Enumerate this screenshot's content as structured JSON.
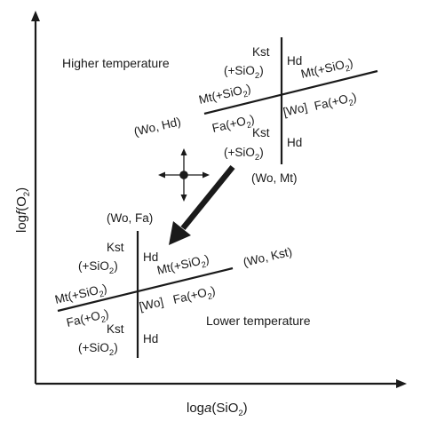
{
  "diagram": {
    "axes": {
      "y_label": {
        "prefix": "log",
        "italic": "f",
        "open": "(O",
        "sub": "2",
        "close": ")"
      },
      "x_label": {
        "prefix": "log",
        "italic": "a",
        "open": "(SiO",
        "sub": "2",
        "close": ")"
      }
    },
    "upper": {
      "region_label": "Higher temperature",
      "kst_top": "Kst",
      "sio2_top": {
        "open": "(+SiO",
        "sub": "2",
        "close": ")"
      },
      "hd_top": "Hd",
      "mt_left": {
        "open": "Mt(+SiO",
        "sub": "2",
        "close": ")"
      },
      "mt_right": {
        "open": "Mt(+SiO",
        "sub": "2",
        "close": ")"
      },
      "wo_hd": "(Wo, Hd)",
      "fa_left": {
        "open": "Fa(+O",
        "sub": "2",
        "close": ")"
      },
      "wo_bracket": "[Wo]",
      "fa_right": {
        "open": "Fa(+O",
        "sub": "2",
        "close": ")"
      },
      "kst_bottom": "Kst",
      "sio2_bottom": {
        "open": "(+SiO",
        "sub": "2",
        "close": ")"
      },
      "hd_bottom": "Hd",
      "wo_mt": "(Wo, Mt)"
    },
    "lower": {
      "wo_fa": "(Wo, Fa)",
      "kst_top": "Kst",
      "sio2_top": {
        "open": "(+SiO",
        "sub": "2",
        "close": ")"
      },
      "hd_top": "Hd",
      "mt_right": {
        "open": "Mt(+SiO",
        "sub": "2",
        "close": ")"
      },
      "wo_kst": "(Wo, Kst)",
      "mt_left": {
        "open": "Mt(+SiO",
        "sub": "2",
        "close": ")"
      },
      "fa_left": {
        "open": "Fa(+O",
        "sub": "2",
        "close": ")"
      },
      "wo_bracket": "[Wo]",
      "fa_right": {
        "open": "Fa(+O",
        "sub": "2",
        "close": ")"
      },
      "region_label": "Lower temperature",
      "kst_bottom": "Kst",
      "sio2_bottom": {
        "open": "(+SiO",
        "sub": "2",
        "close": ")"
      },
      "hd_bottom": "Hd"
    }
  }
}
